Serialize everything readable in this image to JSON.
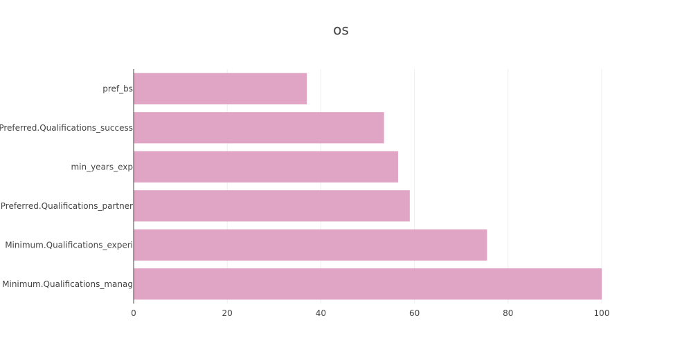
{
  "chart_data": {
    "type": "bar",
    "orientation": "horizontal",
    "title": "os",
    "xlabel": "",
    "ylabel": "",
    "categories": [
      "pref_bs",
      "Preferred.Qualifications_success",
      "min_years_exp",
      "Preferred.Qualifications_partner",
      "Minimum.Qualifications_experi",
      "Minimum.Qualifications_manag"
    ],
    "values": [
      37,
      53.5,
      56.5,
      59,
      75.5,
      100
    ],
    "xlim": [
      0,
      100
    ],
    "xticks": [
      0,
      20,
      40,
      60,
      80,
      100
    ],
    "grid": true,
    "legend": "none",
    "bar_color": "#dc98bd"
  }
}
